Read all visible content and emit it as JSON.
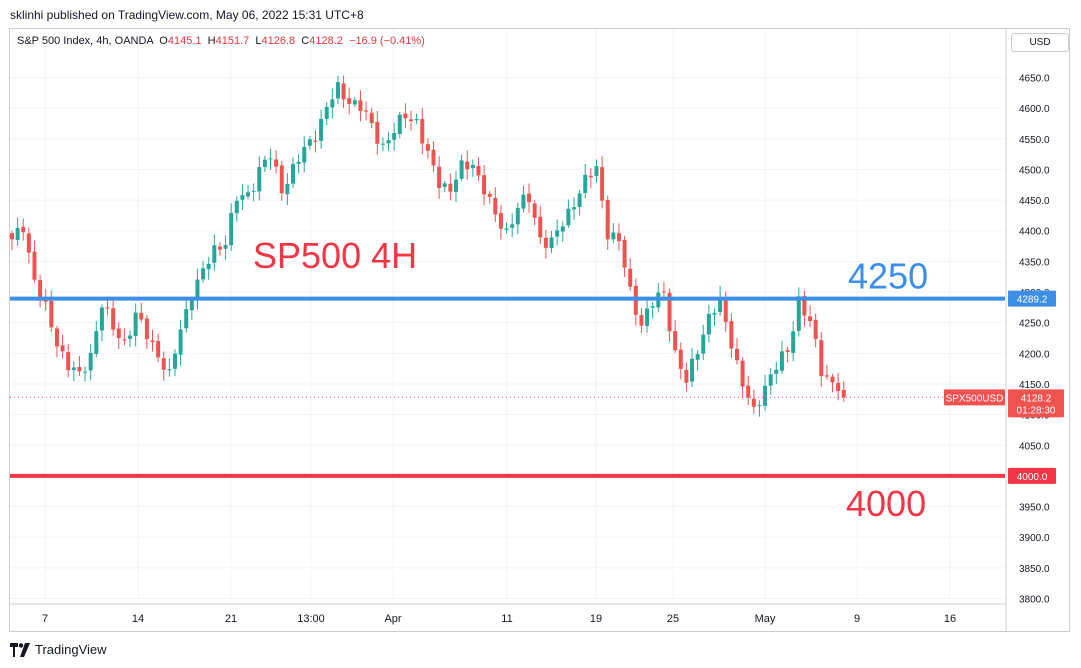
{
  "header": {
    "published": "sklinhi published on TradingView.com, May 06, 2022 15:31 UTC+8"
  },
  "legend": {
    "symbol": "S&P 500 Index, 4h, OANDA",
    "o_label": "O",
    "o": "4145.1",
    "h_label": "H",
    "h": "4151.7",
    "l_label": "L",
    "l": "4126.8",
    "c_label": "C",
    "c": "4128.2",
    "change": "−16.9 (−0.41%)"
  },
  "currency_button": "USD",
  "footer": {
    "brand": "TradingView"
  },
  "colors": {
    "up": "#26a69a",
    "down": "#ef5350",
    "support_line": "#f23645",
    "resistance_line": "#2962ff",
    "resistance_line_shown": "#3d8ee8",
    "grid": "#f0f3fa"
  },
  "chart_data": {
    "type": "candlestick",
    "title": "SP500 4H",
    "symbol_tag": "SPX500USD",
    "last_price": 4128.2,
    "last_price_label": "4128.2",
    "countdown": "01:28:30",
    "ylim": [
      3785,
      4700
    ],
    "y_ticks": [
      3800,
      3850,
      3900,
      3950,
      4000,
      4050,
      4100,
      4150,
      4200,
      4250,
      4300,
      4350,
      4400,
      4450,
      4500,
      4550,
      4600,
      4650
    ],
    "y_tick_labels": [
      "3800.0",
      "3850.0",
      "3900.0",
      "3950.0",
      "4000.0",
      "4050.0",
      "4100.0",
      "4150.0",
      "4200.0",
      "4250.0",
      "4300.0",
      "4350.0",
      "4400.0",
      "4450.0",
      "4500.0",
      "4550.0",
      "4600.0",
      "4650.0"
    ],
    "x_ticks": [
      "7",
      "14",
      "21",
      "13:00",
      "Apr",
      "11",
      "19",
      "25",
      "May",
      "9",
      "16"
    ],
    "grid": true,
    "horizontal_lines": [
      {
        "value": 4289.2,
        "label": "4289.2",
        "annotation": "4250",
        "color": "#3d8ee8"
      },
      {
        "value": 4000.0,
        "label": "4000.0",
        "annotation": "4000",
        "color": "#f23645"
      }
    ],
    "close_path": [
      [
        4380,
        0
      ],
      [
        4410,
        2
      ],
      [
        4320,
        4
      ],
      [
        4270,
        6
      ],
      [
        4220,
        8
      ],
      [
        4180,
        10
      ],
      [
        4160,
        12
      ],
      [
        4200,
        14
      ],
      [
        4280,
        16
      ],
      [
        4240,
        18
      ],
      [
        4220,
        20
      ],
      [
        4260,
        22
      ],
      [
        4230,
        24
      ],
      [
        4200,
        26
      ],
      [
        4160,
        28
      ],
      [
        4240,
        30
      ],
      [
        4300,
        32
      ],
      [
        4330,
        34
      ],
      [
        4370,
        36
      ],
      [
        4385,
        38
      ],
      [
        4450,
        40
      ],
      [
        4460,
        42
      ],
      [
        4500,
        44
      ],
      [
        4520,
        46
      ],
      [
        4470,
        48
      ],
      [
        4500,
        50
      ],
      [
        4530,
        52
      ],
      [
        4560,
        54
      ],
      [
        4600,
        56
      ],
      [
        4630,
        58
      ],
      [
        4615,
        60
      ],
      [
        4600,
        62
      ],
      [
        4570,
        64
      ],
      [
        4540,
        66
      ],
      [
        4560,
        68
      ],
      [
        4590,
        70
      ],
      [
        4580,
        72
      ],
      [
        4520,
        74
      ],
      [
        4480,
        76
      ],
      [
        4470,
        78
      ],
      [
        4500,
        80
      ],
      [
        4510,
        82
      ],
      [
        4470,
        84
      ],
      [
        4420,
        86
      ],
      [
        4400,
        88
      ],
      [
        4440,
        90
      ],
      [
        4450,
        92
      ],
      [
        4390,
        94
      ],
      [
        4380,
        96
      ],
      [
        4410,
        98
      ],
      [
        4450,
        100
      ],
      [
        4480,
        102
      ],
      [
        4500,
        104
      ],
      [
        4400,
        106
      ],
      [
        4380,
        108
      ],
      [
        4300,
        110
      ],
      [
        4250,
        112
      ],
      [
        4280,
        114
      ],
      [
        4300,
        116
      ],
      [
        4200,
        118
      ],
      [
        4150,
        120
      ],
      [
        4210,
        122
      ],
      [
        4260,
        124
      ],
      [
        4280,
        126
      ],
      [
        4220,
        128
      ],
      [
        4150,
        130
      ],
      [
        4100,
        132
      ],
      [
        4150,
        134
      ],
      [
        4180,
        136
      ],
      [
        4200,
        138
      ],
      [
        4290,
        140
      ],
      [
        4250,
        142
      ],
      [
        4170,
        144
      ],
      [
        4155,
        146
      ],
      [
        4140,
        148
      ]
    ],
    "time_index_range": [
      0,
      148
    ]
  }
}
